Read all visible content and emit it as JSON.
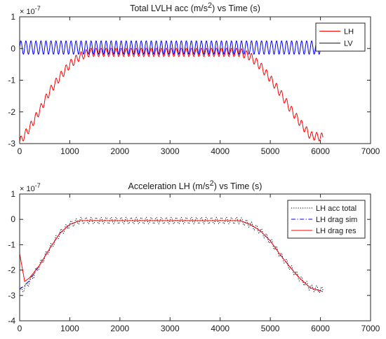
{
  "chart_data": [
    {
      "type": "line",
      "title": "Total LVLH acc (m/s²) vs Time (s)",
      "title_parts": {
        "pre": "Total LVLH acc (m/s",
        "sup": "2",
        "post": ") vs Time (s)"
      },
      "exponent_label": {
        "base": "× 10",
        "power": "-7"
      },
      "xlabel": "",
      "ylabel": "",
      "xlim": [
        0,
        7000
      ],
      "ylim": [
        -3,
        1
      ],
      "xticks": [
        "0",
        "1000",
        "2000",
        "3000",
        "4000",
        "5000",
        "6000",
        "7000"
      ],
      "yticks": [
        "-3",
        "-2",
        "-1",
        "0",
        "1"
      ],
      "grid": false,
      "legend_position": "top-right",
      "series": [
        {
          "name": "LH",
          "color": "#ff0000",
          "style": "solid",
          "trend": {
            "x": [
              0,
              200,
              400,
              600,
              800,
              1000,
              1200,
              1400,
              4400,
              4600,
              4800,
              5000,
              5200,
              5400,
              5600,
              5800,
              6050
            ],
            "y": [
              -2.95,
              -2.5,
              -1.95,
              -1.35,
              -0.9,
              -0.5,
              -0.25,
              -0.12,
              -0.12,
              -0.25,
              -0.55,
              -0.95,
              -1.4,
              -1.9,
              -2.35,
              -2.75,
              -2.8
            ]
          },
          "oscillation": {
            "amplitude": 0.13,
            "period": 100
          }
        },
        {
          "name": "LV",
          "color": "#0000ff",
          "style": "solid",
          "trend": {
            "x": [
              0,
              6050
            ],
            "y": [
              0.03,
              0.03
            ]
          },
          "oscillation": {
            "amplitude": 0.21,
            "period": 100
          }
        }
      ]
    },
    {
      "type": "line",
      "title": "Acceleration LH (m/s²) vs Time (s)",
      "title_parts": {
        "pre": "Acceleration LH (m/s",
        "sup": "2",
        "post": ") vs Time (s)"
      },
      "exponent_label": {
        "base": "× 10",
        "power": "-7"
      },
      "xlabel": "",
      "ylabel": "",
      "xlim": [
        0,
        7000
      ],
      "ylim": [
        -4,
        1
      ],
      "xticks": [
        "0",
        "1000",
        "2000",
        "3000",
        "4000",
        "5000",
        "6000",
        "7000"
      ],
      "yticks": [
        "-4",
        "-3",
        "-2",
        "-1",
        "0",
        "1"
      ],
      "grid": false,
      "legend_position": "top-right",
      "series": [
        {
          "name": "LH acc total",
          "color": "#000000",
          "style": "dotted",
          "trend": {
            "x": [
              0,
              100,
              200,
              400,
              600,
              800,
              1000,
              1200,
              4400,
              4600,
              4800,
              5000,
              5200,
              5400,
              5600,
              5800,
              6050
            ],
            "y": [
              -2.85,
              -2.7,
              -2.45,
              -1.8,
              -1.15,
              -0.55,
              -0.2,
              -0.05,
              -0.05,
              -0.2,
              -0.45,
              -0.85,
              -1.4,
              -1.9,
              -2.35,
              -2.7,
              -2.8
            ]
          },
          "oscillation": {
            "amplitude": 0.13,
            "period": 100
          }
        },
        {
          "name": "LH drag sim",
          "color": "#0000ff",
          "style": "dashdot",
          "trend": {
            "x": [
              0,
              100,
              200,
              400,
              600,
              800,
              1000,
              1200,
              4400,
              4600,
              4800,
              5000,
              5200,
              5400,
              5600,
              5800,
              6050
            ],
            "y": [
              -2.75,
              -2.62,
              -2.4,
              -1.8,
              -1.15,
              -0.55,
              -0.2,
              -0.05,
              -0.05,
              -0.2,
              -0.45,
              -0.85,
              -1.4,
              -1.9,
              -2.35,
              -2.7,
              -2.85
            ]
          },
          "oscillation": {
            "amplitude": 0,
            "period": 100
          }
        },
        {
          "name": "LH drag res",
          "color": "#ff0000",
          "style": "solid",
          "trend": {
            "x": [
              0,
              100,
              200,
              400,
              600,
              800,
              1000,
              1200,
              4400,
              4600,
              4800,
              5000,
              5200,
              5400,
              5600,
              5800,
              6050
            ],
            "y": [
              -1.35,
              -2.45,
              -2.3,
              -1.8,
              -1.15,
              -0.55,
              -0.2,
              -0.05,
              -0.05,
              -0.2,
              -0.45,
              -0.85,
              -1.4,
              -1.9,
              -2.35,
              -2.7,
              -2.85
            ]
          },
          "oscillation": {
            "amplitude": 0,
            "period": 100
          }
        }
      ]
    }
  ]
}
